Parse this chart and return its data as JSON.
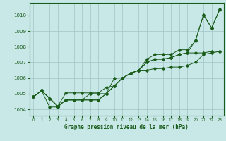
{
  "xlabel": "Graphe pression niveau de la mer (hPa)",
  "ylim": [
    1003.6,
    1010.8
  ],
  "xlim": [
    -0.5,
    23.5
  ],
  "yticks": [
    1004,
    1005,
    1006,
    1007,
    1008,
    1009,
    1010
  ],
  "xticks": [
    0,
    1,
    2,
    3,
    4,
    5,
    6,
    7,
    8,
    9,
    10,
    11,
    12,
    13,
    14,
    15,
    16,
    17,
    18,
    19,
    20,
    21,
    22,
    23
  ],
  "bg_color": "#c8e8e8",
  "line_color": "#1a5c1a",
  "grid_color": "#a0c4c4",
  "line1": [
    1004.8,
    1005.2,
    1004.7,
    1004.2,
    1004.6,
    1004.6,
    1004.6,
    1004.6,
    1004.6,
    1005.0,
    1005.5,
    1006.0,
    1006.3,
    1006.5,
    1007.0,
    1007.2,
    1007.2,
    1007.3,
    1007.5,
    1007.6,
    1008.4,
    1010.0,
    1009.2,
    1010.4
  ],
  "line2": [
    1004.8,
    1005.2,
    1004.7,
    1004.2,
    1004.6,
    1004.6,
    1004.6,
    1004.6,
    1004.6,
    1005.0,
    1006.0,
    1006.0,
    1006.3,
    1006.5,
    1007.0,
    1007.2,
    1007.2,
    1007.3,
    1007.5,
    1007.6,
    1007.6,
    1007.6,
    1007.7,
    1007.7
  ],
  "line3": [
    1004.8,
    1005.2,
    1004.7,
    1004.2,
    1005.05,
    1005.05,
    1005.05,
    1005.05,
    1005.05,
    1005.4,
    1005.5,
    1006.0,
    1006.3,
    1006.5,
    1007.2,
    1007.5,
    1007.5,
    1007.5,
    1007.8,
    1007.8,
    1008.35,
    1010.05,
    1009.2,
    1010.35
  ],
  "line4": [
    1004.8,
    1005.2,
    1004.15,
    1004.15,
    1004.6,
    1004.6,
    1004.6,
    1005.0,
    1005.0,
    1005.0,
    1005.5,
    1006.0,
    1006.3,
    1006.5,
    1006.5,
    1006.6,
    1006.6,
    1006.7,
    1006.7,
    1006.8,
    1007.0,
    1007.5,
    1007.6,
    1007.7
  ]
}
